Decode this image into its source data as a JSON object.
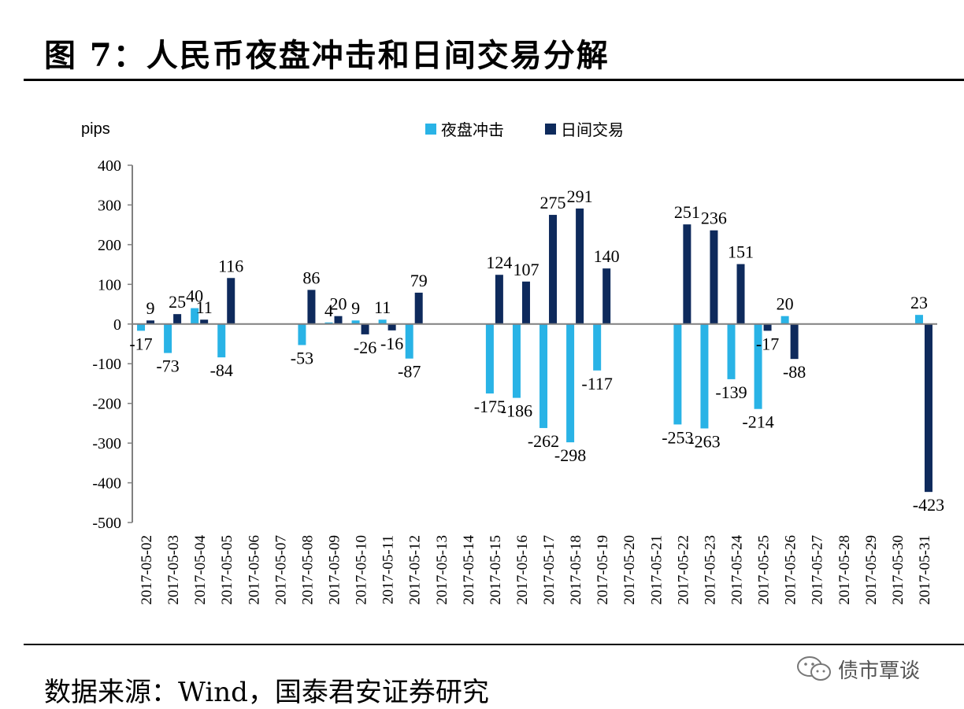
{
  "figure": {
    "title": "图 7：人民币夜盘冲击和日间交易分解",
    "source": "数据来源：Wind，国泰君安证券研究",
    "watermark": "债市覃谈"
  },
  "colors": {
    "night": "#29b3e6",
    "day": "#0e2a5c",
    "axis": "#808080"
  },
  "chart_data": {
    "type": "bar",
    "ylabel": "pips",
    "ylim": [
      -500,
      400
    ],
    "yticks": [
      400,
      300,
      200,
      100,
      0,
      -100,
      -200,
      -300,
      -400,
      -500
    ],
    "legend_position": "top-center",
    "categories": [
      "2017-05-02",
      "2017-05-03",
      "2017-05-04",
      "2017-05-05",
      "2017-05-06",
      "2017-05-07",
      "2017-05-08",
      "2017-05-09",
      "2017-05-10",
      "2017-05-11",
      "2017-05-12",
      "2017-05-13",
      "2017-05-14",
      "2017-05-15",
      "2017-05-16",
      "2017-05-17",
      "2017-05-18",
      "2017-05-19",
      "2017-05-20",
      "2017-05-21",
      "2017-05-22",
      "2017-05-23",
      "2017-05-24",
      "2017-05-25",
      "2017-05-26",
      "2017-05-27",
      "2017-05-28",
      "2017-05-29",
      "2017-05-30",
      "2017-05-31"
    ],
    "series": [
      {
        "name": "夜盘冲击",
        "values": [
          -17,
          -73,
          40,
          -84,
          null,
          null,
          -53,
          4,
          9,
          11,
          -87,
          null,
          null,
          -175,
          -186,
          -262,
          -298,
          -117,
          null,
          null,
          -253,
          -263,
          -139,
          -214,
          20,
          null,
          null,
          null,
          null,
          23
        ]
      },
      {
        "name": "日间交易",
        "values": [
          9,
          25,
          11,
          116,
          null,
          null,
          86,
          20,
          -26,
          -16,
          79,
          null,
          null,
          124,
          107,
          275,
          291,
          140,
          null,
          null,
          251,
          236,
          151,
          -17,
          -88,
          null,
          null,
          null,
          null,
          -423
        ]
      }
    ]
  }
}
